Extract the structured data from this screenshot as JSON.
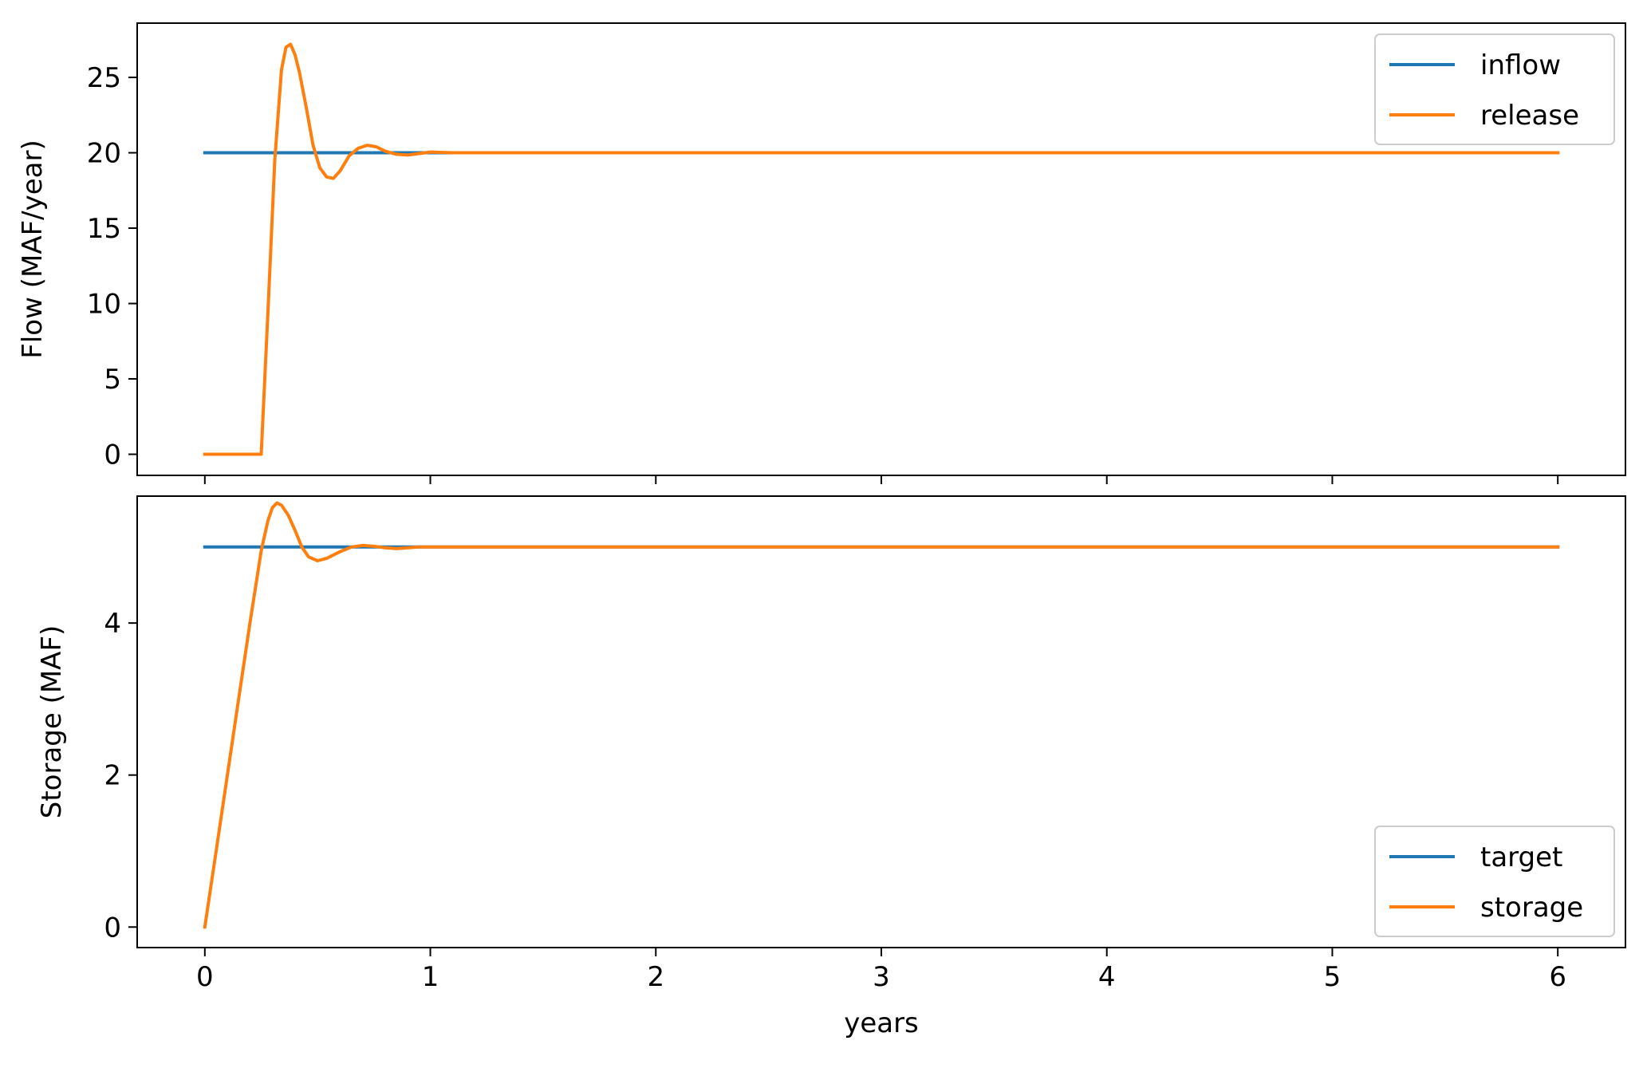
{
  "chart_data": [
    {
      "type": "line",
      "title": "",
      "xlabel": "",
      "ylabel": "Flow (MAF/year)",
      "xlim": [
        -0.3,
        6.3
      ],
      "ylim": [
        -1.4,
        28.6
      ],
      "xticks": [
        0,
        1,
        2,
        3,
        4,
        5,
        6
      ],
      "yticks": [
        0,
        5,
        10,
        15,
        20,
        25
      ],
      "show_xtick_labels": false,
      "grid": false,
      "legend_position": "top-right",
      "series": [
        {
          "name": "inflow",
          "color": "#1f77b4",
          "x": [
            0,
            6
          ],
          "y": [
            20,
            20
          ]
        },
        {
          "name": "release",
          "color": "#ff7f0e",
          "x": [
            0,
            0.25,
            0.28,
            0.31,
            0.34,
            0.36,
            0.38,
            0.4,
            0.42,
            0.45,
            0.48,
            0.51,
            0.54,
            0.57,
            0.6,
            0.64,
            0.68,
            0.72,
            0.76,
            0.8,
            0.85,
            0.9,
            0.95,
            1.0,
            1.1,
            1.2,
            6.0
          ],
          "y": [
            0,
            0,
            9.5,
            19.5,
            25.5,
            27.0,
            27.2,
            26.5,
            25.3,
            23.0,
            20.5,
            19.0,
            18.4,
            18.3,
            18.8,
            19.8,
            20.3,
            20.5,
            20.4,
            20.1,
            19.9,
            19.85,
            19.95,
            20.05,
            20.0,
            20.0,
            20.0
          ]
        }
      ]
    },
    {
      "type": "line",
      "title": "",
      "xlabel": "years",
      "ylabel": "Storage (MAF)",
      "xlim": [
        -0.3,
        6.3
      ],
      "ylim": [
        -0.27,
        5.67
      ],
      "xticks": [
        0,
        1,
        2,
        3,
        4,
        5,
        6
      ],
      "yticks": [
        0,
        2,
        4
      ],
      "show_xtick_labels": true,
      "grid": false,
      "legend_position": "bottom-right",
      "series": [
        {
          "name": "target",
          "color": "#1f77b4",
          "x": [
            0,
            6
          ],
          "y": [
            5,
            5
          ]
        },
        {
          "name": "storage",
          "color": "#ff7f0e",
          "x": [
            0,
            0.05,
            0.1,
            0.15,
            0.2,
            0.25,
            0.28,
            0.3,
            0.32,
            0.34,
            0.37,
            0.4,
            0.43,
            0.46,
            0.5,
            0.54,
            0.6,
            0.65,
            0.7,
            0.75,
            0.8,
            0.85,
            0.9,
            0.95,
            1.0,
            1.1,
            6.0
          ],
          "y": [
            0,
            1.0,
            2.0,
            3.0,
            4.0,
            4.95,
            5.35,
            5.52,
            5.58,
            5.55,
            5.42,
            5.22,
            5.0,
            4.87,
            4.82,
            4.85,
            4.94,
            5.0,
            5.02,
            5.01,
            4.99,
            4.98,
            4.99,
            5.0,
            5.0,
            5.0,
            5.0
          ]
        }
      ]
    }
  ]
}
